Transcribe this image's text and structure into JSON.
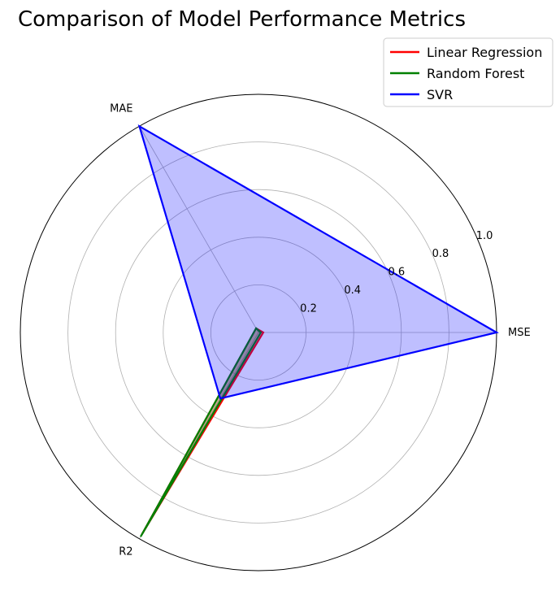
{
  "chart_data": {
    "type": "radar",
    "title": "Comparison of Model Performance Metrics",
    "categories": [
      "MSE",
      "MAE",
      "R2"
    ],
    "rlim": [
      0,
      1.0
    ],
    "r_ticks": [
      0.2,
      0.4,
      0.6,
      0.8,
      1.0
    ],
    "r_tick_labels": [
      "0.2",
      "0.4",
      "0.6",
      "0.8",
      "1.0"
    ],
    "series": [
      {
        "name": "Linear Regression",
        "color": "#ff0000",
        "fill": "#ff0000",
        "values": [
          0.02,
          0.02,
          0.98
        ]
      },
      {
        "name": "Random Forest",
        "color": "#008000",
        "fill": "#008000",
        "values": [
          0.01,
          0.02,
          0.99
        ]
      },
      {
        "name": "SVR",
        "color": "#0000ff",
        "fill": "#0000ff",
        "values": [
          1.0,
          1.0,
          0.32
        ]
      }
    ],
    "legend_position": "top-right",
    "grid": true
  }
}
